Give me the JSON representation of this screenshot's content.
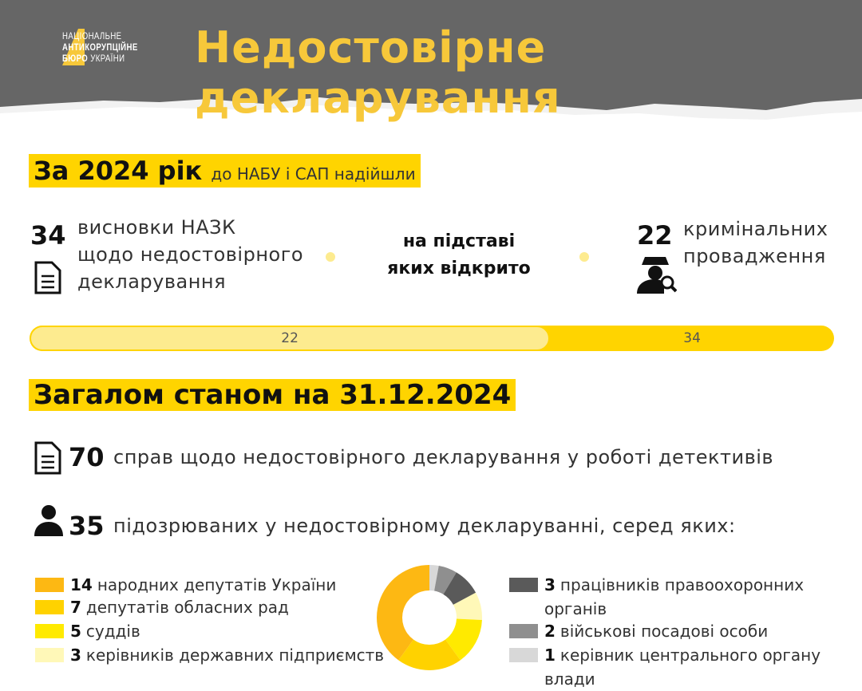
{
  "header": {
    "logo": {
      "line1": "НАЦІОНАЛЬНЕ",
      "line2": "АНТИКОРУПЦІЙНЕ",
      "line3a": "БЮРО",
      "line3b": "УКРАЇНИ"
    },
    "title": "Недостовірне декларування"
  },
  "section1": {
    "heading_bold": "За 2024 рік",
    "heading_rest": "до НАБУ і САП надійшли",
    "left": {
      "number": "34",
      "line1": "висновки НАЗК",
      "line2": "щодо недостовірного",
      "line3": "декларування",
      "icon": "document-icon"
    },
    "center": {
      "line1": "на підставі",
      "line2": "яких відкрито"
    },
    "right": {
      "number": "22",
      "line1": "кримінальних",
      "line2": "провадження",
      "icon": "detective-icon"
    },
    "bar": {
      "value": 22,
      "total": 34,
      "value_label": "22",
      "total_label": "34"
    }
  },
  "section2": {
    "heading": "Загалом станом на 31.12.2024",
    "cases": {
      "number": "70",
      "text": "справ щодо недостовірного декларування у роботі детективів",
      "icon": "document-icon"
    },
    "suspects": {
      "number": "35",
      "text": "підозрюваних у недостовірному декларуванні, серед яких:",
      "icon": "person-icon"
    }
  },
  "chart_data": {
    "type": "pie",
    "donut": true,
    "total": 35,
    "slices": [
      {
        "value": 14,
        "label": "народних депутатів України",
        "color": "#fdb813"
      },
      {
        "value": 7,
        "label": "депутатів обласних рад",
        "color": "#ffd200"
      },
      {
        "value": 5,
        "label": "суддів",
        "color": "#ffea00"
      },
      {
        "value": 3,
        "label": "керівників державних підприємств",
        "color": "#fff8b8"
      },
      {
        "value": 3,
        "label": "працівників правоохоронних органів",
        "color": "#5a5a5a"
      },
      {
        "value": 2,
        "label": "військові посадові особи",
        "color": "#8f8f8f"
      },
      {
        "value": 1,
        "label": "керівник центрального органу влади",
        "color": "#d8d8d8"
      }
    ]
  }
}
